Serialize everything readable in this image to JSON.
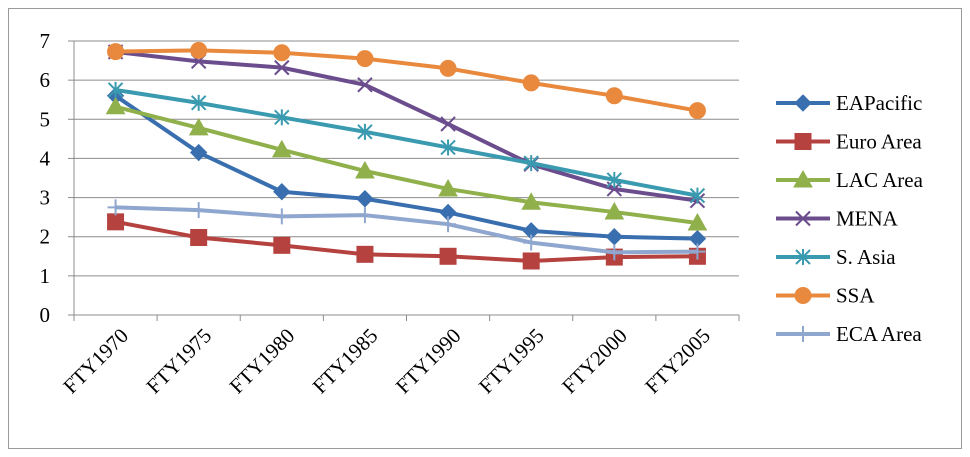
{
  "chart_data": {
    "type": "line",
    "title": "",
    "xlabel": "",
    "ylabel": "",
    "categories": [
      "FTY1970",
      "FTY1975",
      "FTY1980",
      "FTY1985",
      "FTY1990",
      "FTY1995",
      "FTY2000",
      "FTY2005"
    ],
    "ylim": [
      0,
      7
    ],
    "yticks": [
      0,
      1,
      2,
      3,
      4,
      5,
      6,
      7
    ],
    "grid": "horizontal",
    "legend_position": "right",
    "series": [
      {
        "name": "EAPacific",
        "color": "#3a6faf",
        "marker": "diamond",
        "values": [
          5.6,
          4.15,
          3.15,
          2.97,
          2.62,
          2.15,
          2.0,
          1.95
        ]
      },
      {
        "name": "Euro Area",
        "color": "#b5423f",
        "marker": "square",
        "values": [
          2.38,
          1.98,
          1.78,
          1.55,
          1.5,
          1.38,
          1.48,
          1.5
        ]
      },
      {
        "name": "LAC Area",
        "color": "#8fb04a",
        "marker": "triangle",
        "values": [
          5.32,
          4.78,
          4.22,
          3.68,
          3.22,
          2.88,
          2.63,
          2.35
        ]
      },
      {
        "name": "MENA",
        "color": "#6b4d8e",
        "marker": "x",
        "values": [
          6.72,
          6.48,
          6.32,
          5.88,
          4.88,
          3.85,
          3.22,
          2.92
        ]
      },
      {
        "name": "S. Asia",
        "color": "#3a9ab0",
        "marker": "star",
        "values": [
          5.75,
          5.42,
          5.05,
          4.68,
          4.28,
          3.88,
          3.45,
          3.05
        ]
      },
      {
        "name": "SSA",
        "color": "#e8893e",
        "marker": "circle",
        "values": [
          6.73,
          6.76,
          6.7,
          6.55,
          6.3,
          5.93,
          5.6,
          5.22
        ]
      },
      {
        "name": "ECA Area",
        "color": "#8fa7cf",
        "marker": "plus",
        "values": [
          2.75,
          2.68,
          2.52,
          2.55,
          2.32,
          1.85,
          1.6,
          1.62
        ]
      }
    ]
  }
}
